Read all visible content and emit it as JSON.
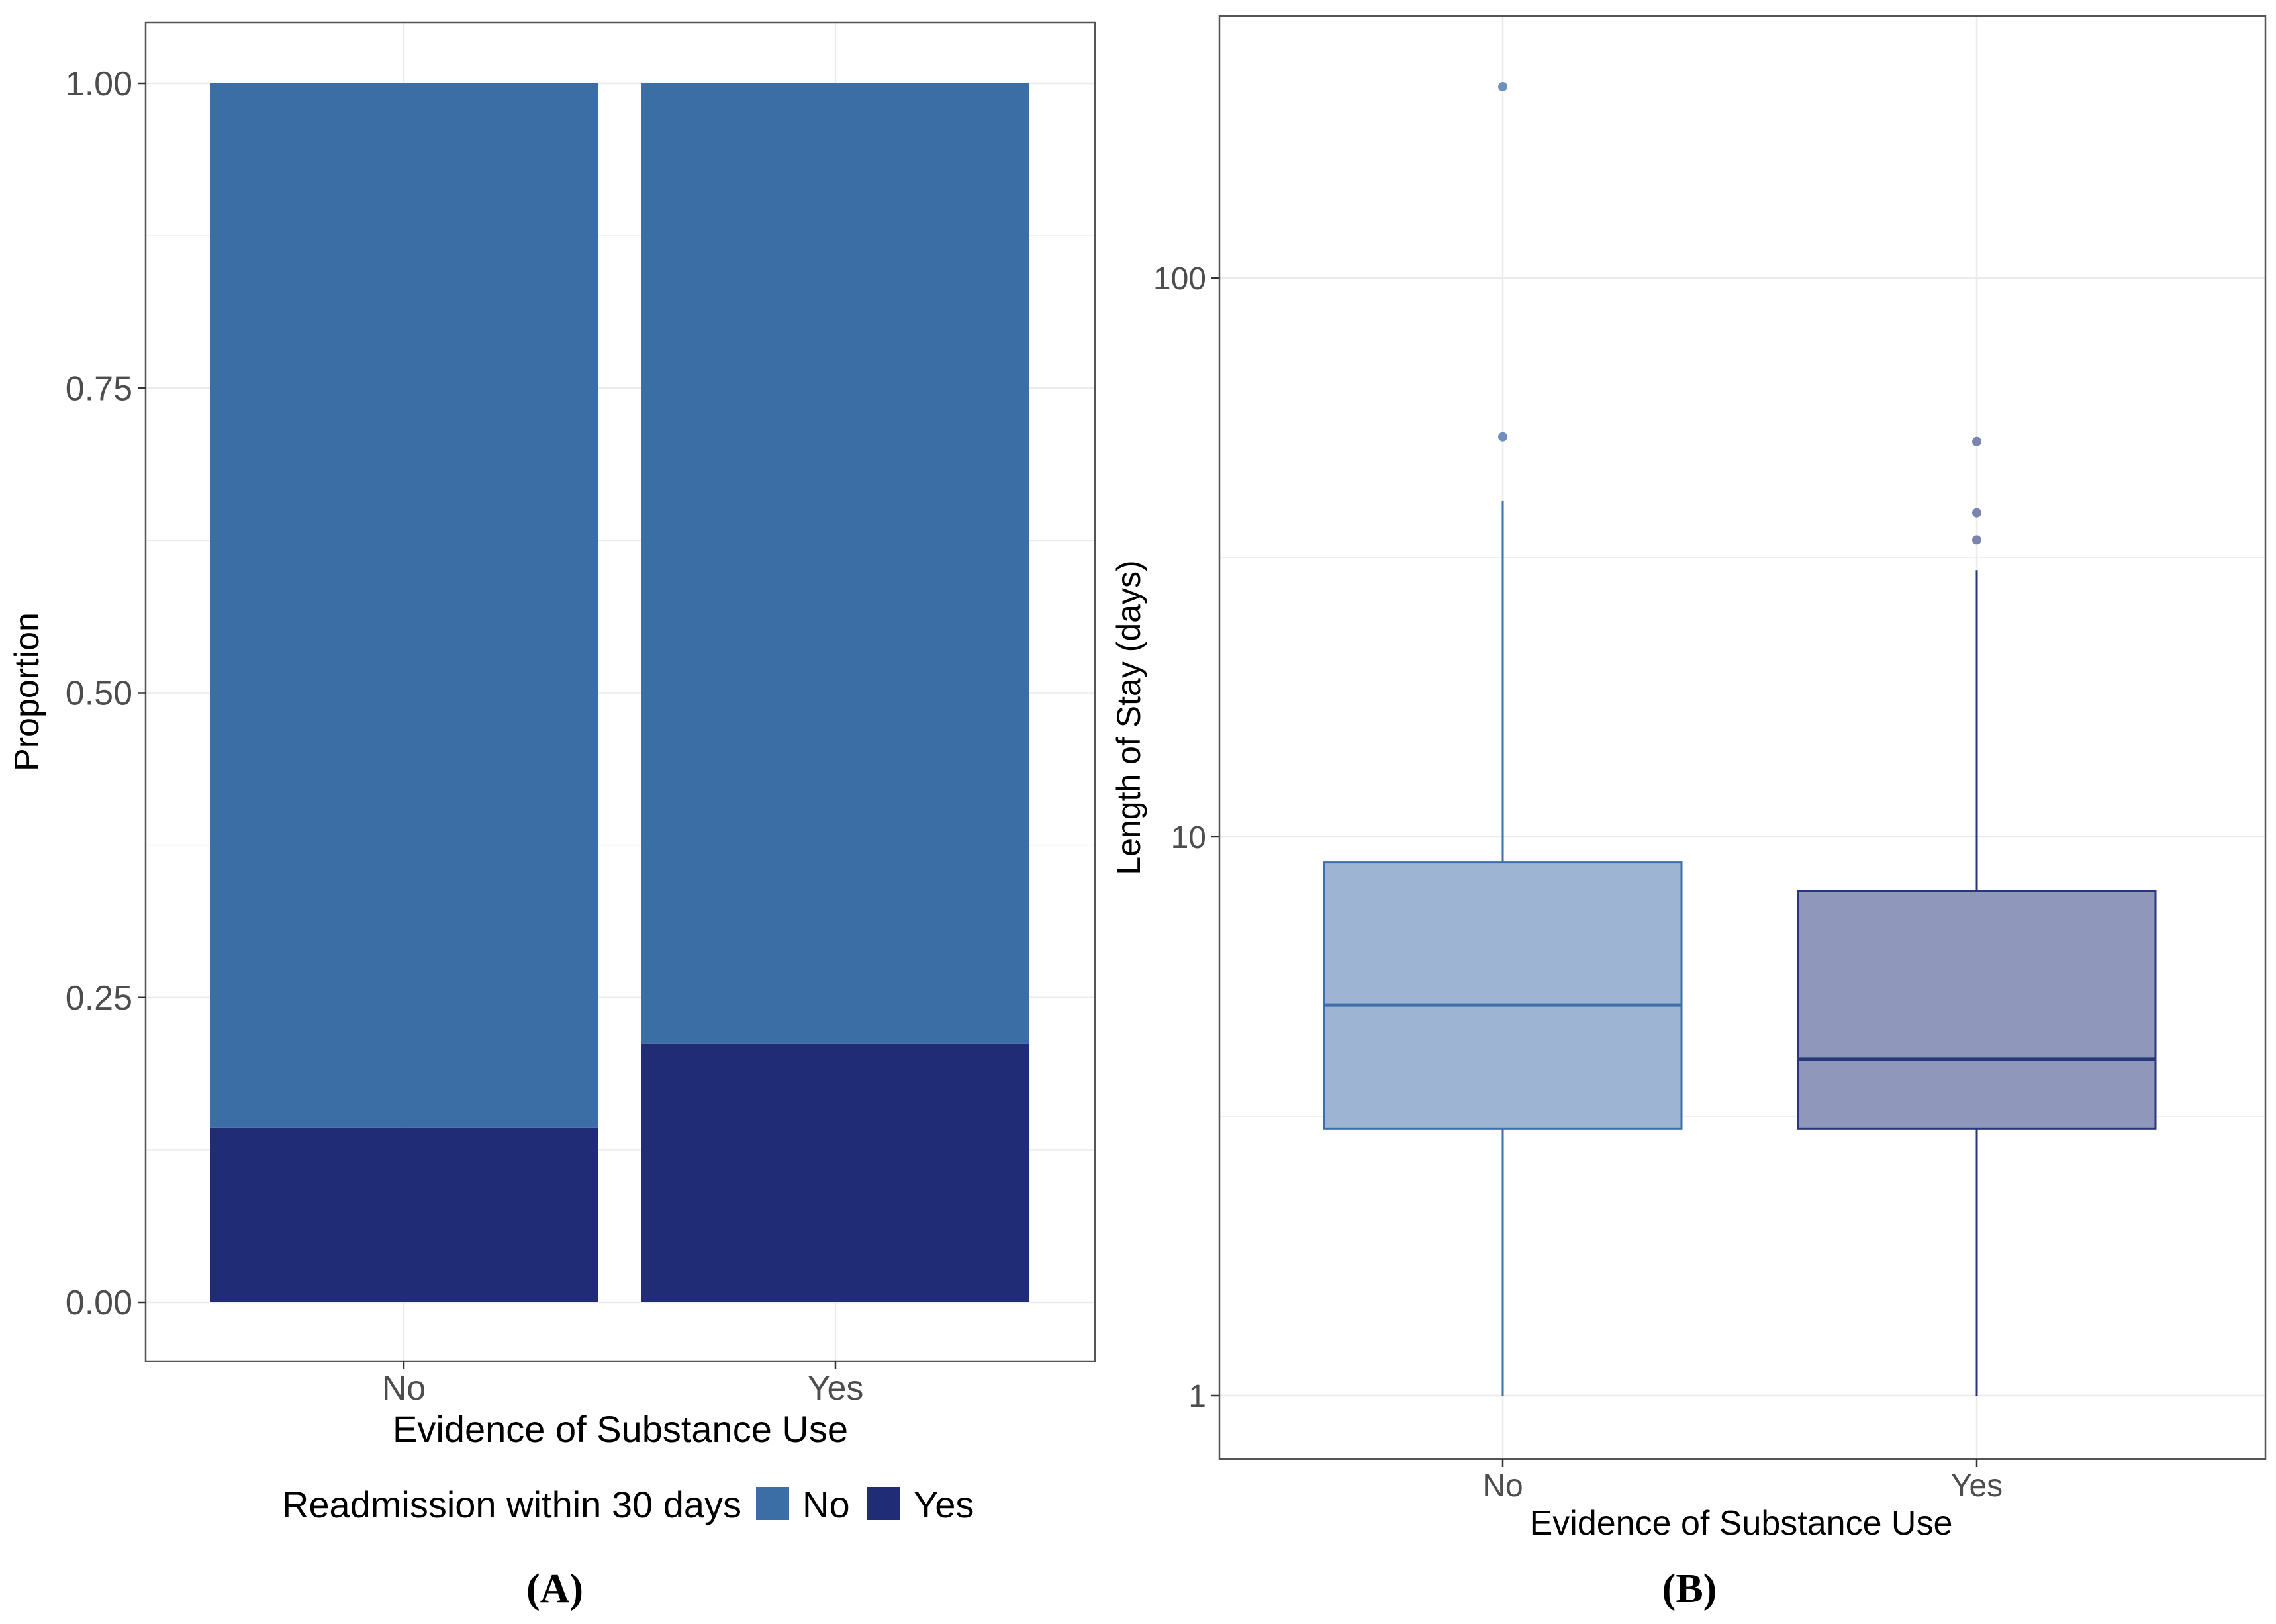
{
  "colors": {
    "no": "#3a6ea5",
    "yes": "#202c75",
    "grid": "#ebebeb",
    "panel_border": "#555555",
    "tick_text": "#4d4d4d",
    "box_no_fill": "#9db5d2",
    "box_no_line": "#3e6fa8",
    "box_yes_fill": "#8f97bb",
    "box_yes_line": "#283779",
    "outlier_no": "#6f8fbe",
    "outlier_yes": "#7a84ad"
  },
  "chart_data": [
    {
      "type": "bar",
      "stacked": true,
      "title": "",
      "caption": "(A)",
      "xlabel": "Evidence of Substance Use",
      "ylabel": "Proportion",
      "categories": [
        "No",
        "Yes"
      ],
      "ylim": [
        0,
        1
      ],
      "yticks": [
        0,
        0.25,
        0.5,
        0.75,
        1.0
      ],
      "ytick_labels": [
        "0.00",
        "0.25",
        "0.50",
        "0.75",
        "1.00"
      ],
      "series": [
        {
          "name": "Yes",
          "values": [
            0.143,
            0.212
          ]
        },
        {
          "name": "No",
          "values": [
            0.857,
            0.788
          ]
        }
      ],
      "legend": {
        "title": "Readmission within 30 days",
        "position": "bottom",
        "entries": [
          "No",
          "Yes"
        ]
      }
    },
    {
      "type": "box",
      "title": "",
      "caption": "(B)",
      "xlabel": "Evidence of Substance Use",
      "ylabel": "Length of Stay (days)",
      "yscale": "log10",
      "ylim": [
        0.83,
        300
      ],
      "yticks": [
        1,
        10,
        100
      ],
      "ytick_labels": [
        "1",
        "10",
        "100"
      ],
      "categories": [
        "No",
        "Yes"
      ],
      "boxes": [
        {
          "name": "No",
          "whisker_low": 1,
          "q1": 3,
          "median": 5,
          "q3": 9,
          "whisker_high": 40,
          "outliers": [
            52,
            220
          ]
        },
        {
          "name": "Yes",
          "whisker_low": 1,
          "q1": 3,
          "median": 4,
          "q3": 8,
          "whisker_high": 30,
          "outliers": [
            34,
            38,
            51
          ]
        }
      ]
    }
  ]
}
